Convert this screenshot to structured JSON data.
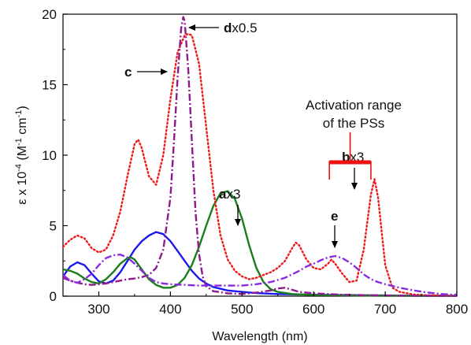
{
  "chart_data": {
    "type": "line",
    "xlabel": "Wavelength (nm)",
    "ylabel": "ε x 10",
    "ylabel_exp": "-4",
    "ylabel_unit_open": " (M",
    "ylabel_unit_exp1": "-1",
    "ylabel_unit_mid": " cm",
    "ylabel_unit_exp2": "-1",
    "ylabel_unit_close": ")",
    "xlim": [
      250,
      800
    ],
    "ylim": [
      0,
      20
    ],
    "xticks": [
      300,
      400,
      500,
      600,
      700,
      800
    ],
    "yticks": [
      0,
      5,
      10,
      15,
      20
    ],
    "grid": false,
    "legend": "none",
    "series": [
      {
        "name": "a",
        "color": "#1a1aee",
        "dash": "solid",
        "x": [
          250,
          260,
          270,
          280,
          290,
          300,
          310,
          320,
          330,
          340,
          350,
          360,
          370,
          380,
          390,
          400,
          410,
          420,
          430,
          440,
          450,
          460,
          480,
          500,
          520,
          550,
          600,
          650,
          700,
          750,
          800
        ],
        "y": [
          1.4,
          2.1,
          2.4,
          2.2,
          1.6,
          1.05,
          0.9,
          1.1,
          1.7,
          2.5,
          3.3,
          3.9,
          4.3,
          4.55,
          4.4,
          3.9,
          3.2,
          2.5,
          1.8,
          1.25,
          0.9,
          0.65,
          0.4,
          0.3,
          0.22,
          0.15,
          0.1,
          0.07,
          0.05,
          0.03,
          0.02
        ]
      },
      {
        "name": "b",
        "color": "#1b7d1b",
        "dash": "solid",
        "x": [
          250,
          260,
          270,
          280,
          290,
          300,
          310,
          320,
          330,
          340,
          345,
          350,
          360,
          370,
          380,
          390,
          400,
          410,
          420,
          430,
          440,
          450,
          460,
          470,
          480,
          490,
          500,
          510,
          520,
          530,
          540,
          550,
          570,
          600,
          650,
          700,
          800
        ],
        "y": [
          1.9,
          1.8,
          1.6,
          1.25,
          1.0,
          0.9,
          1.2,
          1.7,
          2.3,
          2.7,
          2.75,
          2.6,
          1.9,
          1.2,
          0.8,
          0.6,
          0.6,
          0.8,
          1.3,
          2.2,
          3.5,
          5.0,
          6.4,
          7.3,
          7.45,
          6.9,
          5.5,
          3.6,
          2.0,
          1.0,
          0.5,
          0.3,
          0.15,
          0.08,
          0.05,
          0.03,
          0.02
        ]
      },
      {
        "name": "c",
        "color": "#ee1a1a",
        "dash": "dotted",
        "x": [
          250,
          260,
          270,
          280,
          290,
          300,
          310,
          320,
          330,
          340,
          350,
          355,
          360,
          370,
          380,
          390,
          400,
          410,
          420,
          425,
          430,
          440,
          450,
          460,
          470,
          480,
          490,
          500,
          510,
          520,
          530,
          540,
          550,
          560,
          570,
          575,
          580,
          590,
          600,
          610,
          620,
          625,
          630,
          640,
          650,
          660,
          670,
          680,
          685,
          690,
          700,
          710,
          720,
          740,
          760,
          800
        ],
        "y": [
          3.5,
          4.0,
          4.3,
          4.1,
          3.4,
          3.1,
          3.3,
          4.3,
          6.0,
          8.5,
          10.8,
          11.1,
          10.5,
          8.5,
          7.9,
          10.0,
          14.0,
          17.3,
          18.5,
          18.6,
          18.5,
          16.5,
          12.0,
          7.5,
          4.3,
          2.6,
          1.8,
          1.4,
          1.2,
          1.3,
          1.5,
          1.7,
          2.0,
          2.5,
          3.4,
          3.8,
          3.6,
          2.6,
          2.0,
          1.9,
          2.3,
          2.6,
          2.3,
          1.6,
          1.0,
          1.1,
          3.3,
          7.2,
          8.3,
          7.0,
          2.2,
          0.6,
          0.3,
          0.12,
          0.06,
          0.03
        ]
      },
      {
        "name": "d",
        "color": "#8e1a8e",
        "dash": "dashdot",
        "x": [
          250,
          260,
          270,
          280,
          290,
          300,
          310,
          320,
          330,
          340,
          350,
          360,
          370,
          380,
          390,
          400,
          405,
          410,
          415,
          418,
          420,
          425,
          430,
          435,
          440,
          445,
          450,
          460,
          480,
          500,
          520,
          540,
          550,
          560,
          570,
          580,
          600,
          620,
          640,
          660,
          700,
          750,
          800
        ],
        "y": [
          1.3,
          1.1,
          0.95,
          0.85,
          0.8,
          0.85,
          0.9,
          1.0,
          1.1,
          1.2,
          1.25,
          1.35,
          1.5,
          2.0,
          3.3,
          7.0,
          11.0,
          15.5,
          19.0,
          19.8,
          19.5,
          16.0,
          11.0,
          6.0,
          3.0,
          1.4,
          0.7,
          0.35,
          0.2,
          0.15,
          0.25,
          0.4,
          0.55,
          0.6,
          0.45,
          0.3,
          0.2,
          0.15,
          0.1,
          0.08,
          0.05,
          0.03,
          0.02
        ]
      },
      {
        "name": "e",
        "color": "#8a2be2",
        "dash": "dashdot",
        "x": [
          250,
          260,
          270,
          280,
          290,
          300,
          310,
          320,
          330,
          340,
          350,
          360,
          370,
          380,
          390,
          400,
          420,
          440,
          460,
          480,
          500,
          520,
          540,
          560,
          570,
          580,
          590,
          600,
          610,
          620,
          630,
          640,
          650,
          660,
          670,
          680,
          690,
          700,
          720,
          740,
          760,
          780,
          800
        ],
        "y": [
          1.5,
          1.1,
          0.95,
          1.2,
          1.6,
          2.2,
          2.7,
          2.9,
          2.95,
          2.75,
          2.3,
          1.8,
          1.3,
          1.0,
          0.9,
          0.85,
          0.8,
          0.75,
          0.75,
          0.75,
          0.75,
          0.85,
          1.0,
          1.3,
          1.55,
          1.8,
          2.1,
          2.3,
          2.55,
          2.75,
          2.85,
          2.7,
          2.4,
          2.0,
          1.55,
          1.2,
          1.0,
          0.85,
          0.6,
          0.4,
          0.25,
          0.15,
          0.1
        ]
      }
    ],
    "annotations": [
      {
        "id": "a",
        "label_bold": "a",
        "label_rest": "x3"
      },
      {
        "id": "b",
        "label_bold": "b",
        "label_rest": "x3"
      },
      {
        "id": "c",
        "label_bold": "c",
        "label_rest": ""
      },
      {
        "id": "d",
        "label_bold": "d",
        "label_rest": "x0.5"
      },
      {
        "id": "e",
        "label_bold": "e",
        "label_rest": ""
      },
      {
        "id": "range",
        "line1": "Activation range",
        "line2": "of the PSs",
        "x_start": 622,
        "x_end": 680
      }
    ]
  }
}
